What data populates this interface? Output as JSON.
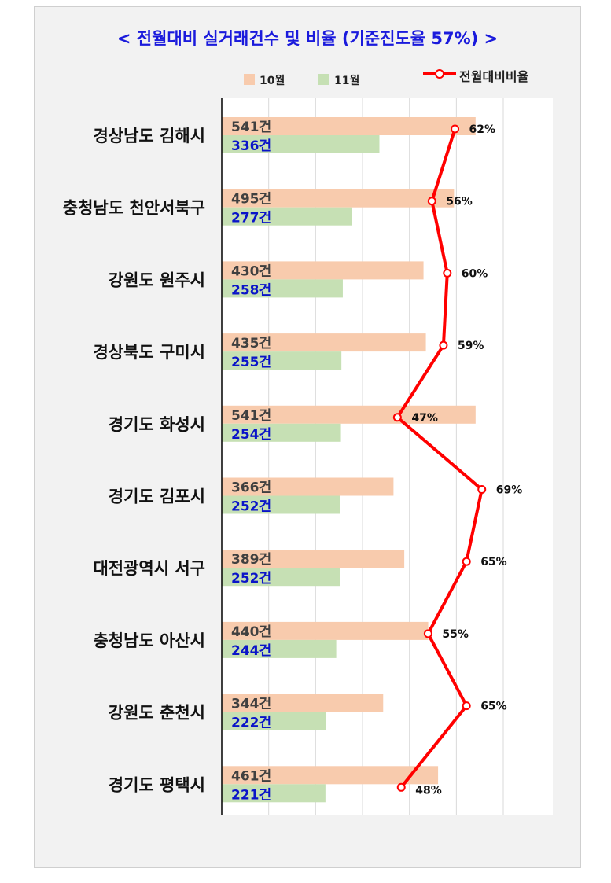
{
  "title": "< 전월대비 실거래건수 및 비율 (기준진도율 57%) >",
  "legend": {
    "oct": "10월",
    "nov": "11월",
    "ratio": "전월대비비율"
  },
  "colors": {
    "oct": "#f8cbad",
    "nov": "#c6e0b4",
    "ratio": "#ff0000",
    "title": "#1a1adc",
    "nov_label": "#0a14c8"
  },
  "chart_data": {
    "type": "bar",
    "orientation": "horizontal",
    "title": "< 전월대비 실거래건수 및 비율 (기준진도율 57%) >",
    "categories": [
      "경상남도 김해시",
      "충청남도 천안서북구",
      "강원도 원주시",
      "경상북도 구미시",
      "경기도 화성시",
      "경기도 김포시",
      "대전광역시 서구",
      "충청남도 아산시",
      "강원도 춘천시",
      "경기도 평택시"
    ],
    "series": [
      {
        "name": "10월",
        "values": [
          541,
          495,
          430,
          435,
          541,
          366,
          389,
          440,
          344,
          461
        ],
        "labels": [
          "541건",
          "495건",
          "430건",
          "435건",
          "541건",
          "366건",
          "389건",
          "440건",
          "344건",
          "461건"
        ]
      },
      {
        "name": "11월",
        "values": [
          336,
          277,
          258,
          255,
          254,
          252,
          252,
          244,
          222,
          221
        ],
        "labels": [
          "336건",
          "277건",
          "258건",
          "255건",
          "254건",
          "252건",
          "252건",
          "244건",
          "222건",
          "221건"
        ]
      }
    ],
    "line_series": {
      "name": "전월대비비율",
      "values": [
        62,
        56,
        60,
        59,
        47,
        69,
        65,
        55,
        65,
        48
      ],
      "labels": [
        "62%",
        "56%",
        "60%",
        "59%",
        "47%",
        "69%",
        "65%",
        "55%",
        "65%",
        "48%"
      ]
    },
    "xlim": [
      0,
      600
    ],
    "grid": true,
    "legend_position": "top"
  }
}
